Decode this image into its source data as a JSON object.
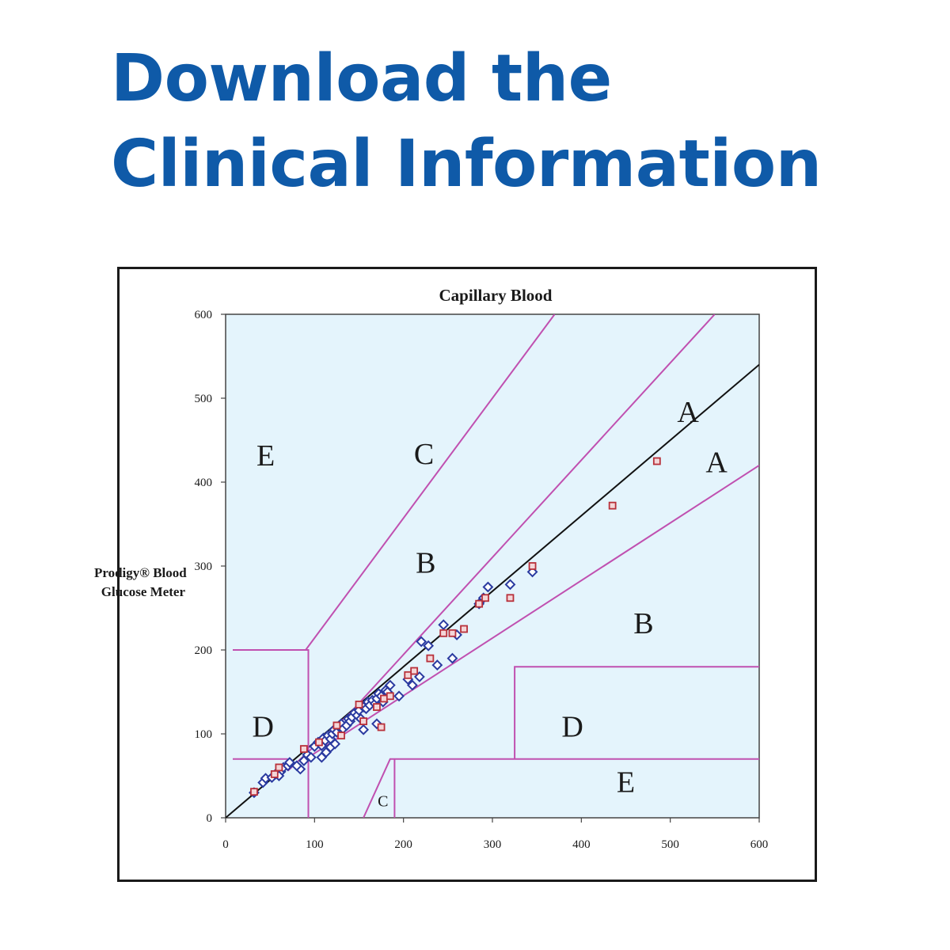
{
  "headline": {
    "line1": "Download the",
    "line2": "Clinical Information"
  },
  "chart_data": {
    "type": "scatter",
    "title": "Capillary Blood",
    "xlabel": "",
    "ylabel": "Prodigy® Blood Glucose Meter",
    "ylabel_lines": [
      "Prodigy® Blood",
      "Glucose Meter"
    ],
    "xlim": [
      0,
      600
    ],
    "ylim": [
      0,
      600
    ],
    "x_ticks": [
      0,
      100,
      200,
      300,
      400,
      500,
      600
    ],
    "y_ticks": [
      0,
      100,
      200,
      300,
      400,
      500,
      600
    ],
    "grid": false,
    "zone_labels": [
      {
        "text": "A",
        "x": 520,
        "y": 480
      },
      {
        "text": "A",
        "x": 552,
        "y": 420
      },
      {
        "text": "B",
        "x": 225,
        "y": 300
      },
      {
        "text": "B",
        "x": 470,
        "y": 228
      },
      {
        "text": "C",
        "x": 223,
        "y": 430
      },
      {
        "text": "C",
        "x": 177,
        "y": 18
      },
      {
        "text": "D",
        "x": 42,
        "y": 105
      },
      {
        "text": "D",
        "x": 390,
        "y": 105
      },
      {
        "text": "E",
        "x": 45,
        "y": 428
      },
      {
        "text": "E",
        "x": 450,
        "y": 39
      }
    ],
    "zone_lines": [
      {
        "points": [
          [
            0,
            0
          ],
          [
            600,
            540
          ]
        ],
        "color": "#111111"
      },
      {
        "points": [
          [
            70,
            56
          ],
          [
            140,
            125
          ],
          [
            550,
            600
          ]
        ],
        "color": "#c050b0"
      },
      {
        "points": [
          [
            90,
            70
          ],
          [
            600,
            420
          ]
        ],
        "color": "#c050b0"
      },
      {
        "points": [
          [
            90,
            200
          ],
          [
            370,
            600
          ]
        ],
        "color": "#c050b0"
      },
      {
        "points": [
          [
            93,
            0
          ],
          [
            93,
            200
          ],
          [
            8,
            200
          ]
        ],
        "color": "#c050b0"
      },
      {
        "points": [
          [
            8,
            70
          ],
          [
            70,
            70
          ]
        ],
        "color": "#c050b0"
      },
      {
        "points": [
          [
            325,
            70
          ],
          [
            325,
            180
          ],
          [
            600,
            180
          ]
        ],
        "color": "#c050b0"
      },
      {
        "points": [
          [
            155,
            0
          ],
          [
            185,
            70
          ],
          [
            600,
            70
          ]
        ],
        "color": "#c050b0"
      },
      {
        "points": [
          [
            190,
            0
          ],
          [
            190,
            70
          ]
        ],
        "color": "#c050b0"
      }
    ],
    "series": [
      {
        "marker": "diamond",
        "color": "#2a3aa0",
        "points": [
          [
            32,
            30
          ],
          [
            42,
            42
          ],
          [
            45,
            47
          ],
          [
            52,
            48
          ],
          [
            56,
            52
          ],
          [
            62,
            55
          ],
          [
            65,
            60
          ],
          [
            70,
            62
          ],
          [
            84,
            58
          ],
          [
            92,
            75
          ],
          [
            96,
            72
          ],
          [
            100,
            85
          ],
          [
            104,
            90
          ],
          [
            108,
            86
          ],
          [
            110,
            95
          ],
          [
            112,
            92
          ],
          [
            115,
            98
          ],
          [
            118,
            94
          ],
          [
            120,
            100
          ],
          [
            122,
            105
          ],
          [
            125,
            102
          ],
          [
            128,
            108
          ],
          [
            130,
            112
          ],
          [
            132,
            106
          ],
          [
            136,
            110
          ],
          [
            138,
            118
          ],
          [
            140,
            115
          ],
          [
            142,
            120
          ],
          [
            145,
            125
          ],
          [
            148,
            122
          ],
          [
            150,
            128
          ],
          [
            152,
            118
          ],
          [
            155,
            132
          ],
          [
            158,
            130
          ],
          [
            160,
            138
          ],
          [
            162,
            134
          ],
          [
            165,
            140
          ],
          [
            168,
            136
          ],
          [
            170,
            142
          ],
          [
            172,
            148
          ],
          [
            175,
            145
          ],
          [
            177,
            138
          ],
          [
            180,
            152
          ],
          [
            182,
            150
          ],
          [
            185,
            158
          ],
          [
            155,
            105
          ],
          [
            170,
            112
          ],
          [
            195,
            145
          ],
          [
            205,
            165
          ],
          [
            210,
            158
          ],
          [
            218,
            168
          ],
          [
            220,
            210
          ],
          [
            228,
            205
          ],
          [
            238,
            182
          ],
          [
            245,
            230
          ],
          [
            255,
            190
          ],
          [
            260,
            218
          ],
          [
            285,
            255
          ],
          [
            290,
            262
          ],
          [
            295,
            275
          ],
          [
            320,
            278
          ],
          [
            345,
            293
          ],
          [
            108,
            72
          ],
          [
            113,
            78
          ],
          [
            118,
            84
          ],
          [
            123,
            88
          ],
          [
            88,
            68
          ],
          [
            80,
            62
          ],
          [
            72,
            66
          ],
          [
            60,
            50
          ]
        ]
      },
      {
        "marker": "square",
        "color": "#b8303a",
        "points": [
          [
            32,
            31
          ],
          [
            55,
            52
          ],
          [
            60,
            60
          ],
          [
            88,
            82
          ],
          [
            105,
            90
          ],
          [
            125,
            110
          ],
          [
            130,
            98
          ],
          [
            150,
            135
          ],
          [
            155,
            115
          ],
          [
            170,
            132
          ],
          [
            175,
            108
          ],
          [
            178,
            142
          ],
          [
            185,
            145
          ],
          [
            205,
            170
          ],
          [
            212,
            175
          ],
          [
            230,
            190
          ],
          [
            245,
            220
          ],
          [
            255,
            220
          ],
          [
            268,
            225
          ],
          [
            285,
            255
          ],
          [
            292,
            262
          ],
          [
            320,
            262
          ],
          [
            345,
            300
          ],
          [
            435,
            372
          ],
          [
            485,
            425
          ]
        ]
      }
    ]
  }
}
